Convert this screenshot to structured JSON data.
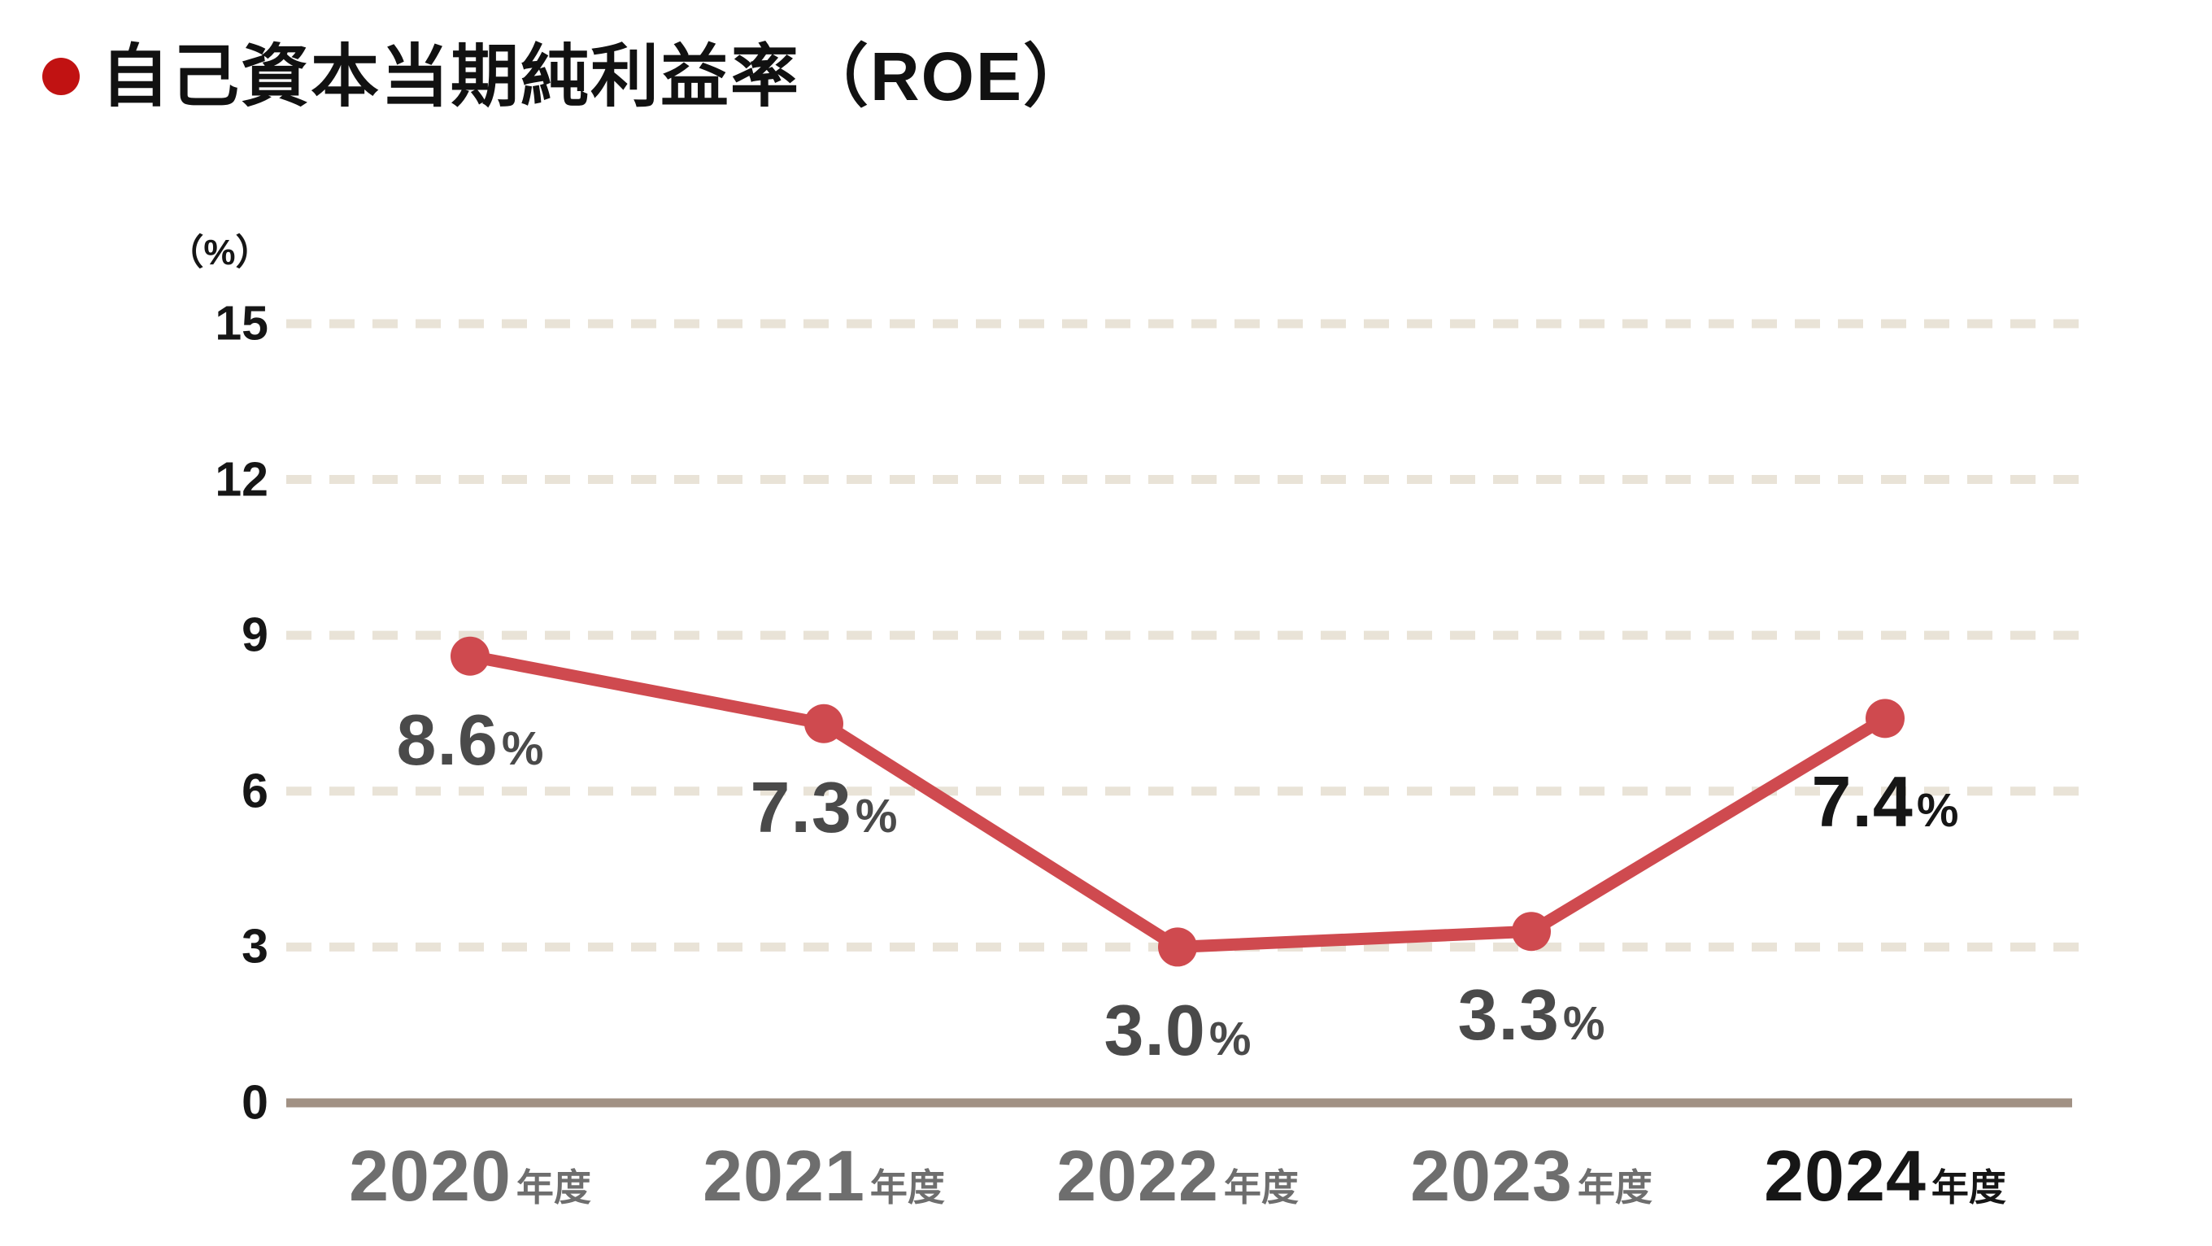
{
  "chart_data": {
    "type": "line",
    "title": "自己資本当期純利益率（ROE）",
    "unit_label": "（%）",
    "categories": [
      "2020",
      "2021",
      "2022",
      "2023",
      "2024"
    ],
    "category_suffix": "年度",
    "values": [
      8.6,
      7.3,
      3.0,
      3.3,
      7.4
    ],
    "value_suffix": "%",
    "y_ticks": [
      0,
      3,
      6,
      9,
      12,
      15
    ],
    "ylim": [
      0,
      15
    ],
    "grid": "horizontal-dashed",
    "legend": "none",
    "emphasized_index": 4,
    "colors": {
      "title_text": "#111111",
      "title_bullet": "#c11212",
      "line": "#cf4a4f",
      "marker": "#cf4a4f",
      "grid": "#e9e3d7",
      "axis": "#a19184",
      "tick_label": "#161616",
      "category_label": "#6e6e6e",
      "category_label_emphasis": "#161616",
      "data_label": "#4a4a4a",
      "data_label_emphasis": "#161616"
    }
  }
}
